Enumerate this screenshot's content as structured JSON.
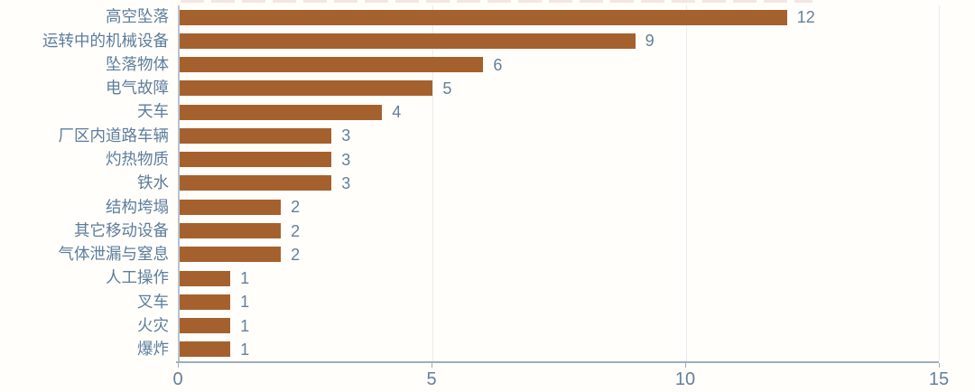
{
  "chart_data": {
    "type": "bar",
    "orientation": "horizontal",
    "categories": [
      "高空坠落",
      "运转中的机械设备",
      "坠落物体",
      "电气故障",
      "天车",
      "厂区内道路车辆",
      "灼热物质",
      "铁水",
      "结构垮塌",
      "其它移动设备",
      "气体泄漏与窒息",
      "人工操作",
      "叉车",
      "火灾",
      "爆炸"
    ],
    "values": [
      12,
      9,
      6,
      5,
      4,
      3,
      3,
      3,
      2,
      2,
      2,
      1,
      1,
      1,
      1
    ],
    "value_labels": [
      "12",
      "9",
      "6",
      "5",
      "4",
      "3",
      "3",
      "3",
      "2",
      "2",
      "2",
      "1",
      "1",
      "1",
      "1"
    ],
    "title": "",
    "xlabel": "",
    "ylabel": "",
    "xlim": [
      0,
      15
    ],
    "x_ticks": [
      0,
      5,
      10,
      15
    ],
    "x_tick_labels": [
      "0",
      "5",
      "10",
      "15"
    ],
    "grid": "vertical-at-major-ticks",
    "legend": "none",
    "colors": {
      "bar": "#a5612d",
      "category_label": "#5d7d9b",
      "value_label": "#64809a",
      "tick_label": "#64809a",
      "axis_line": "#9fadb9",
      "y_axis_line": "#b7c3cd",
      "gridline": "#e9ebed",
      "background": "#fffefb"
    }
  }
}
